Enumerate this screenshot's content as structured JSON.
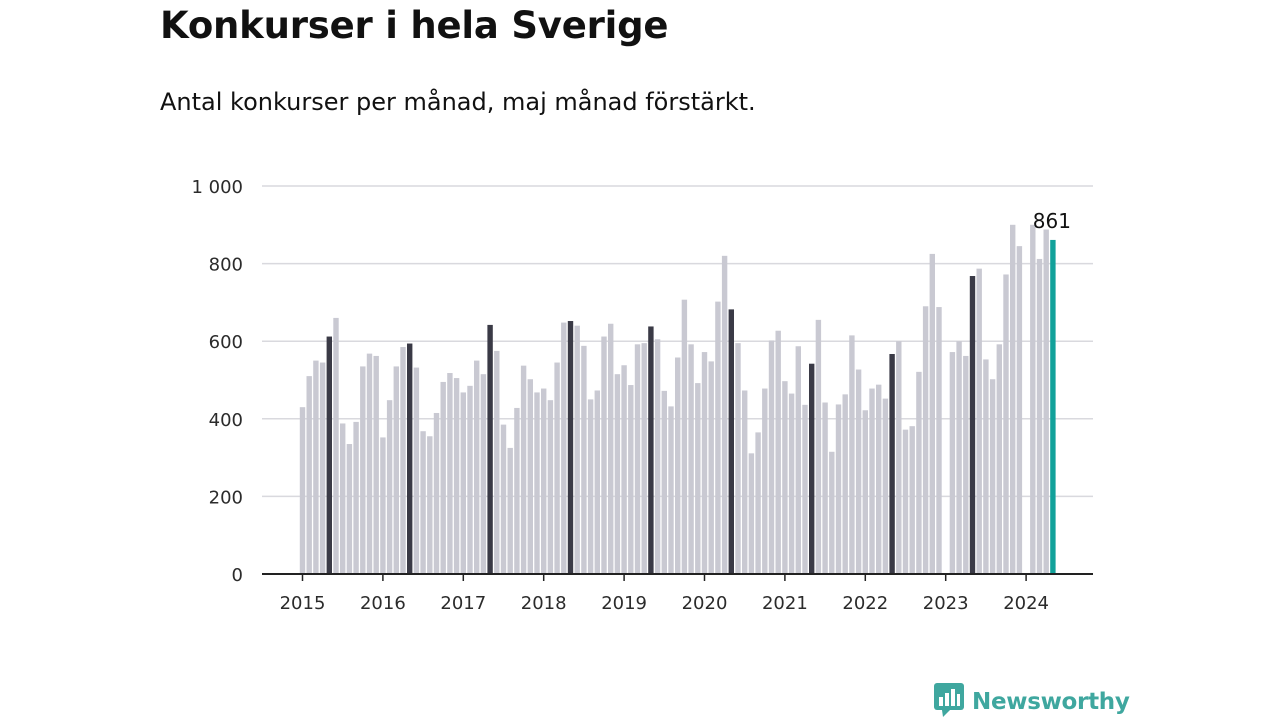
{
  "title": "Konkurser i hela Sverige",
  "subtitle": "Antal konkurser per månad, maj månad förstärkt.",
  "brand": {
    "name": "Newsworthy",
    "icon": "bar-chart-logo-icon",
    "color": "#3fa79f"
  },
  "colors": {
    "bar": "#c9c9d2",
    "may": "#3a3a46",
    "current": "#12a19a",
    "grid": "#d9d9de",
    "axis": "#222222"
  },
  "chart_data": {
    "type": "bar",
    "title": "Konkurser i hela Sverige",
    "subtitle": "Antal konkurser per månad, maj månad förstärkt.",
    "xlabel": "",
    "ylabel": "",
    "ylim": [
      0,
      1000
    ],
    "yticks": [
      0,
      200,
      400,
      600,
      800,
      1000
    ],
    "ytick_labels": [
      "0",
      "200",
      "400",
      "600",
      "800",
      "1 000"
    ],
    "xtick_labels": [
      "2015",
      "2016",
      "2017",
      "2018",
      "2019",
      "2020",
      "2021",
      "2022",
      "2023",
      "2024"
    ],
    "grid": true,
    "start": "2015-01",
    "highlight_month": "May",
    "annotation": {
      "month": "2024-05",
      "text": "861"
    },
    "series": [
      {
        "year": "2015",
        "values": [
          430,
          510,
          550,
          545,
          612,
          660,
          388,
          335,
          392,
          535,
          568,
          562
        ]
      },
      {
        "year": "2016",
        "values": [
          352,
          448,
          535,
          585,
          594,
          532,
          368,
          355,
          415,
          495,
          518,
          505
        ]
      },
      {
        "year": "2017",
        "values": [
          468,
          485,
          550,
          515,
          642,
          575,
          385,
          325,
          428,
          537,
          502,
          468
        ]
      },
      {
        "year": "2018",
        "values": [
          478,
          448,
          545,
          648,
          652,
          640,
          588,
          450,
          473,
          612,
          645,
          515
        ]
      },
      {
        "year": "2019",
        "values": [
          538,
          487,
          592,
          595,
          638,
          605,
          472,
          432,
          558,
          707,
          592,
          492
        ]
      },
      {
        "year": "2020",
        "values": [
          572,
          548,
          702,
          820,
          682,
          595,
          473,
          311,
          365,
          478,
          602,
          627
        ]
      },
      {
        "year": "2021",
        "values": [
          497,
          465,
          587,
          436,
          542,
          655,
          442,
          315,
          437,
          463,
          615,
          527
        ]
      },
      {
        "year": "2022",
        "values": [
          422,
          478,
          488,
          452,
          567,
          600,
          372,
          381,
          521,
          690,
          825,
          688
        ]
      },
      {
        "year": "2023",
        "values": [
          null,
          572,
          600,
          562,
          768,
          787,
          553,
          502,
          592,
          772,
          900,
          845
        ]
      },
      {
        "year": "2024",
        "values": [
          null,
          900,
          812,
          888,
          861
        ]
      }
    ]
  }
}
